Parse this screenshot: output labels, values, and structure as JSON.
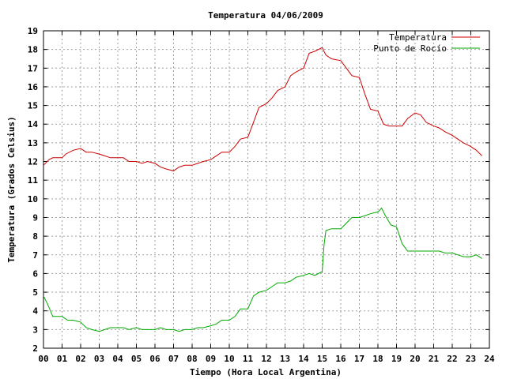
{
  "chart_data": {
    "type": "line",
    "title": "Temperatura 04/06/2009",
    "xlabel": "Tiempo (Hora Local Argentina)",
    "ylabel": "Temperatura (Grados Celsius)",
    "xlim": [
      0,
      24
    ],
    "ylim": [
      2,
      19
    ],
    "xticks": [
      "00",
      "01",
      "02",
      "03",
      "04",
      "05",
      "06",
      "07",
      "08",
      "09",
      "10",
      "11",
      "12",
      "13",
      "14",
      "15",
      "16",
      "17",
      "18",
      "19",
      "20",
      "21",
      "22",
      "23",
      "24"
    ],
    "yticks": [
      2,
      3,
      4,
      5,
      6,
      7,
      8,
      9,
      10,
      11,
      12,
      13,
      14,
      15,
      16,
      17,
      18,
      19
    ],
    "grid": true,
    "legend_position": "top-right",
    "series": [
      {
        "name": "Temperatura",
        "color": "#cc0000",
        "x": [
          0,
          0.3,
          0.5,
          1,
          1.2,
          1.6,
          2,
          2.3,
          2.6,
          3,
          3.3,
          3.6,
          4,
          4.3,
          4.6,
          5,
          5.3,
          5.6,
          6,
          6.3,
          6.6,
          7,
          7.3,
          7.6,
          8,
          8.3,
          8.6,
          9,
          9.3,
          9.6,
          10,
          10.3,
          10.6,
          11,
          11.3,
          11.6,
          12,
          12.3,
          12.6,
          13,
          13.3,
          13.6,
          14,
          14.3,
          14.6,
          15,
          15.2,
          15.5,
          16,
          16.3,
          16.6,
          17,
          17.3,
          17.6,
          18,
          18.3,
          18.6,
          19,
          19.3,
          19.6,
          20,
          20.3,
          20.6,
          21,
          21.3,
          21.6,
          22,
          22.3,
          22.6,
          23,
          23.3,
          23.6
        ],
        "y": [
          11.8,
          12.1,
          12.2,
          12.2,
          12.4,
          12.6,
          12.7,
          12.5,
          12.5,
          12.4,
          12.3,
          12.2,
          12.2,
          12.2,
          12.0,
          12.0,
          11.9,
          12.0,
          11.9,
          11.7,
          11.6,
          11.5,
          11.7,
          11.8,
          11.8,
          11.9,
          12.0,
          12.1,
          12.3,
          12.5,
          12.5,
          12.8,
          13.2,
          13.3,
          14.1,
          14.9,
          15.1,
          15.4,
          15.8,
          16.0,
          16.6,
          16.8,
          17.0,
          17.8,
          17.9,
          18.1,
          17.7,
          17.5,
          17.4,
          17.0,
          16.6,
          16.5,
          15.6,
          14.8,
          14.7,
          14.0,
          13.9,
          13.9,
          13.9,
          14.3,
          14.6,
          14.5,
          14.1,
          13.9,
          13.8,
          13.6,
          13.4,
          13.2,
          13.0,
          12.8,
          12.6,
          12.3
        ]
      },
      {
        "name": "Punto de Rocío",
        "color": "#00aa00",
        "x": [
          0,
          0.2,
          0.5,
          1,
          1.3,
          1.6,
          2,
          2.3,
          2.6,
          3,
          3.3,
          3.6,
          4,
          4.3,
          4.6,
          5,
          5.3,
          5.6,
          6,
          6.3,
          6.6,
          7,
          7.3,
          7.6,
          8,
          8.3,
          8.6,
          9,
          9.3,
          9.6,
          10,
          10.3,
          10.6,
          11,
          11.3,
          11.6,
          12,
          12.3,
          12.6,
          13,
          13.3,
          13.6,
          14,
          14.3,
          14.6,
          15,
          15.1,
          15.2,
          15.5,
          16,
          16.3,
          16.6,
          17,
          17.3,
          17.6,
          18,
          18.2,
          18.4,
          18.7,
          19,
          19.3,
          19.6,
          20,
          20.3,
          20.6,
          21,
          21.3,
          21.6,
          22,
          22.3,
          22.6,
          23,
          23.3,
          23.6
        ],
        "y": [
          4.8,
          4.4,
          3.7,
          3.7,
          3.5,
          3.5,
          3.4,
          3.1,
          3.0,
          2.9,
          3.0,
          3.1,
          3.1,
          3.1,
          3.0,
          3.1,
          3.0,
          3.0,
          3.0,
          3.1,
          3.0,
          3.0,
          2.9,
          3.0,
          3.0,
          3.1,
          3.1,
          3.2,
          3.3,
          3.5,
          3.5,
          3.7,
          4.1,
          4.1,
          4.8,
          5.0,
          5.1,
          5.3,
          5.5,
          5.5,
          5.6,
          5.8,
          5.9,
          6.0,
          5.9,
          6.1,
          7.5,
          8.3,
          8.4,
          8.4,
          8.7,
          9.0,
          9.0,
          9.1,
          9.2,
          9.3,
          9.5,
          9.1,
          8.6,
          8.5,
          7.6,
          7.2,
          7.2,
          7.2,
          7.2,
          7.2,
          7.2,
          7.1,
          7.1,
          7.0,
          6.9,
          6.9,
          7.0,
          6.8
        ]
      }
    ]
  }
}
